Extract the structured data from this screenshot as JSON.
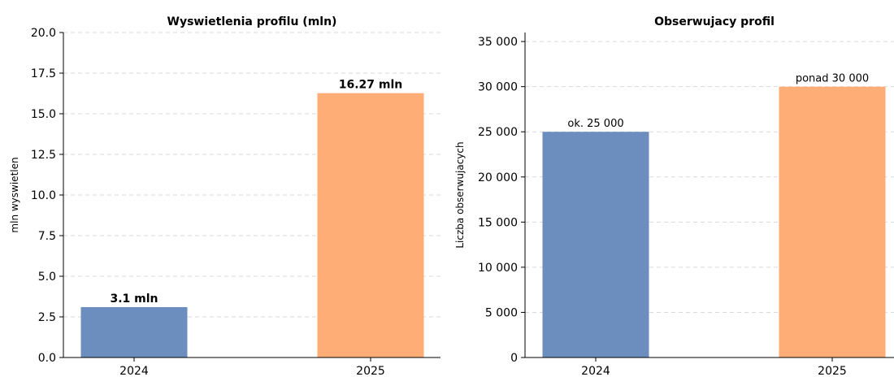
{
  "chart_data": [
    {
      "type": "bar",
      "title": "Wyswietlenia profilu (mln)",
      "xlabel": "",
      "ylabel": "mln wyswietlen",
      "categories": [
        "2024",
        "2025"
      ],
      "values": [
        3.1,
        16.27
      ],
      "data_labels": [
        "3.1 mln",
        "16.27 mln"
      ],
      "data_labels_bold": true,
      "bar_colors": [
        "#6c8ebf",
        "#ffad76"
      ],
      "ylim": [
        0,
        20
      ],
      "yticks": [
        0,
        2.5,
        5,
        7.5,
        10,
        12.5,
        15,
        17.5,
        20
      ],
      "ytick_labels": [
        "0.0",
        "2.5",
        "5.0",
        "7.5",
        "10.0",
        "12.5",
        "15.0",
        "17.5",
        "20.0"
      ],
      "grid": "y-dashed",
      "legend": "none"
    },
    {
      "type": "bar",
      "title": "Obserwujacy profil",
      "xlabel": "",
      "ylabel": "Liczba obserwujacych",
      "categories": [
        "2024",
        "2025"
      ],
      "values": [
        25000,
        30000
      ],
      "data_labels": [
        "ok. 25 000",
        "ponad 30 000"
      ],
      "data_labels_bold": false,
      "bar_colors": [
        "#6c8ebf",
        "#ffad76"
      ],
      "ylim": [
        0,
        36000
      ],
      "yticks": [
        0,
        5000,
        10000,
        15000,
        20000,
        25000,
        30000,
        35000
      ],
      "ytick_labels": [
        "0",
        "5 000",
        "10 000",
        "15 000",
        "20 000",
        "25 000",
        "30 000",
        "35 000"
      ],
      "grid": "y-dashed",
      "legend": "none"
    }
  ]
}
